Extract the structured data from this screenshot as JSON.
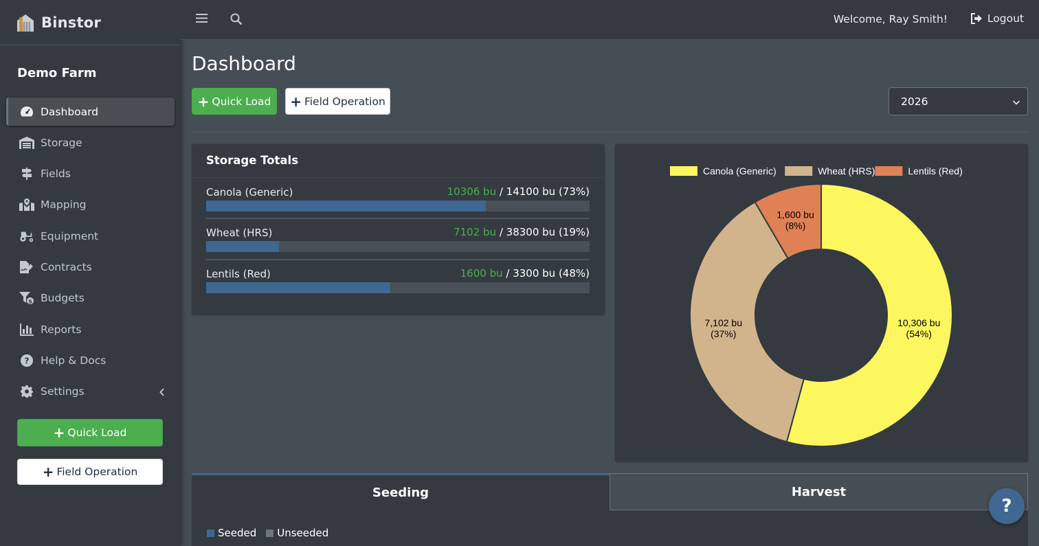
{
  "app": {
    "brand": "Binstor",
    "farm_name": "Demo Farm"
  },
  "sidebar": {
    "items": [
      {
        "label": "Dashboard",
        "icon": "dashboard-icon",
        "active": true
      },
      {
        "label": "Storage",
        "icon": "warehouse-icon"
      },
      {
        "label": "Fields",
        "icon": "signpost-icon"
      },
      {
        "label": "Mapping",
        "icon": "map-marked-icon"
      },
      {
        "label": "Equipment",
        "icon": "tractor-icon"
      },
      {
        "label": "Contracts",
        "icon": "file-signature-icon"
      },
      {
        "label": "Budgets",
        "icon": "funnel-dollar-icon"
      },
      {
        "label": "Reports",
        "icon": "chart-bar-icon"
      },
      {
        "label": "Help & Docs",
        "icon": "question-circle-icon"
      },
      {
        "label": "Settings",
        "icon": "gear-icon"
      }
    ],
    "quick_load": "Quick Load",
    "field_operation": "Field Operation"
  },
  "topbar": {
    "welcome": "Welcome, Ray Smith!",
    "logout": "Logout"
  },
  "main": {
    "title": "Dashboard",
    "quick_load": "Quick Load",
    "field_operation": "Field Operation",
    "year": "2026"
  },
  "storage_totals": {
    "title": "Storage Totals",
    "rows": [
      {
        "name": "Canola (Generic)",
        "stored": "10306 bu",
        "capacity": " / 14100 bu (73%)",
        "fill": 0.73
      },
      {
        "name": "Wheat (HRS)",
        "stored": "7102 bu",
        "capacity": " / 38300 bu (19%)",
        "fill": 0.19
      },
      {
        "name": "Lentils (Red)",
        "stored": "1600 bu",
        "capacity": " / 3300 bu (48%)",
        "fill": 0.48
      }
    ]
  },
  "chart_data": {
    "type": "pie",
    "donut": true,
    "legend_position": "top",
    "categories": [
      "Canola (Generic)",
      "Wheat (HRS)",
      "Lentils (Red)"
    ],
    "values": [
      10306,
      7102,
      1600
    ],
    "labels": [
      [
        "10,306 bu",
        "(54%)"
      ],
      [
        "7,102 bu",
        "(37%)"
      ],
      [
        "1,600 bu",
        "(8%)"
      ]
    ],
    "colors": [
      "#fcf75e",
      "#d2b48c",
      "#e08155"
    ]
  },
  "tabs": {
    "seeding": "Seeding",
    "harvest": "Harvest"
  },
  "seeding_legend": {
    "seeded": "Seeded",
    "unseeded": "Unseeded",
    "seeded_color": "#3f6791",
    "unseeded_color": "#6c757d"
  },
  "help_fab": "?"
}
